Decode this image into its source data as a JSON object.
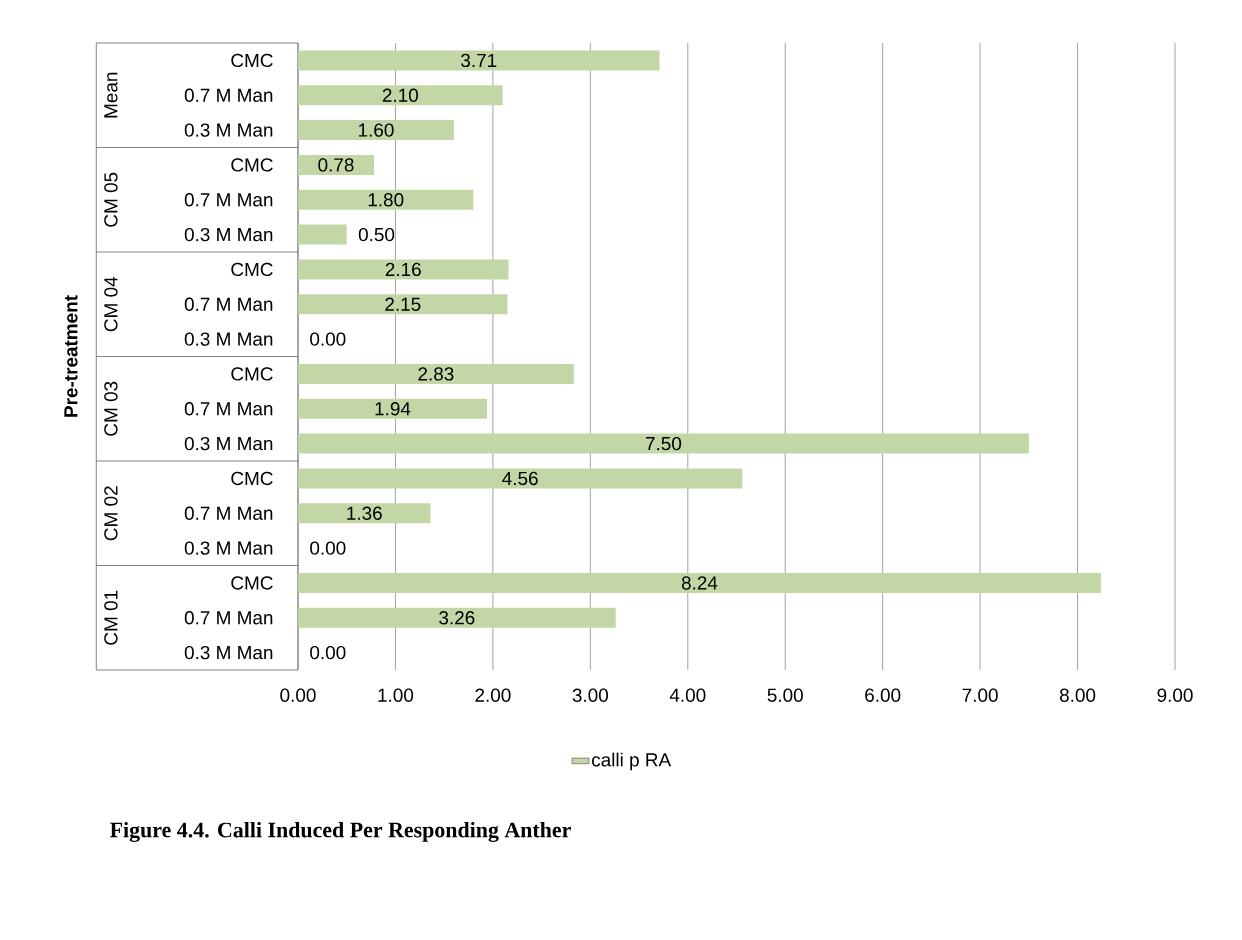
{
  "chart_data": {
    "type": "bar",
    "orientation": "horizontal",
    "title": "Figure 4.4. Calli Induced Per Responding Anther",
    "categories": [
      "CMC",
      "0.7 M Man",
      "0.3 M Man",
      "CMC",
      "0.7 M Man",
      "0.3 M Man",
      "CMC",
      "0.7 M Man",
      "0.3 M Man",
      "CMC",
      "0.7 M Man",
      "0.3 M Man",
      "CMC",
      "0.7 M Man",
      "0.3 M Man",
      "CMC",
      "0.7 M Man",
      "0.3 M Man"
    ],
    "annotations": [
      "Mean",
      "CM 05",
      "CM 04",
      "CM 03",
      "CM 02",
      "CM 01",
      "Pre-treatment"
    ],
    "series": [
      {
        "name": "calli p RA",
        "color": "#c3d6a5",
        "values": [
          3.71,
          2.1,
          1.6,
          0.78,
          1.8,
          0.5,
          2.16,
          2.15,
          0.0,
          2.83,
          1.94,
          7.5,
          4.56,
          1.36,
          0.0,
          8.24,
          3.26,
          0.0
        ]
      }
    ],
    "value_labels": [
      "3.71",
      "2.10",
      "1.60",
      "0.78",
      "1.80",
      "0.50",
      "2.16",
      "2.15",
      "0.00",
      "2.83",
      "1.94",
      "7.50",
      "4.56",
      "1.36",
      "0.00",
      "8.24",
      "3.26",
      "0.00"
    ],
    "xlim": [
      0,
      9
    ],
    "xticks": [
      {
        "value": 0,
        "label": "0.00"
      },
      {
        "value": 1,
        "label": "1.00"
      },
      {
        "value": 2,
        "label": "2.00"
      },
      {
        "value": 3,
        "label": "3.00"
      },
      {
        "value": 4,
        "label": "4.00"
      },
      {
        "value": 5,
        "label": "5.00"
      },
      {
        "value": 6,
        "label": "6.00"
      },
      {
        "value": 7,
        "label": "7.00"
      },
      {
        "value": 8,
        "label": "8.00"
      },
      {
        "value": 9,
        "label": "9.00"
      }
    ],
    "grid": "x",
    "legend": "bottom"
  }
}
